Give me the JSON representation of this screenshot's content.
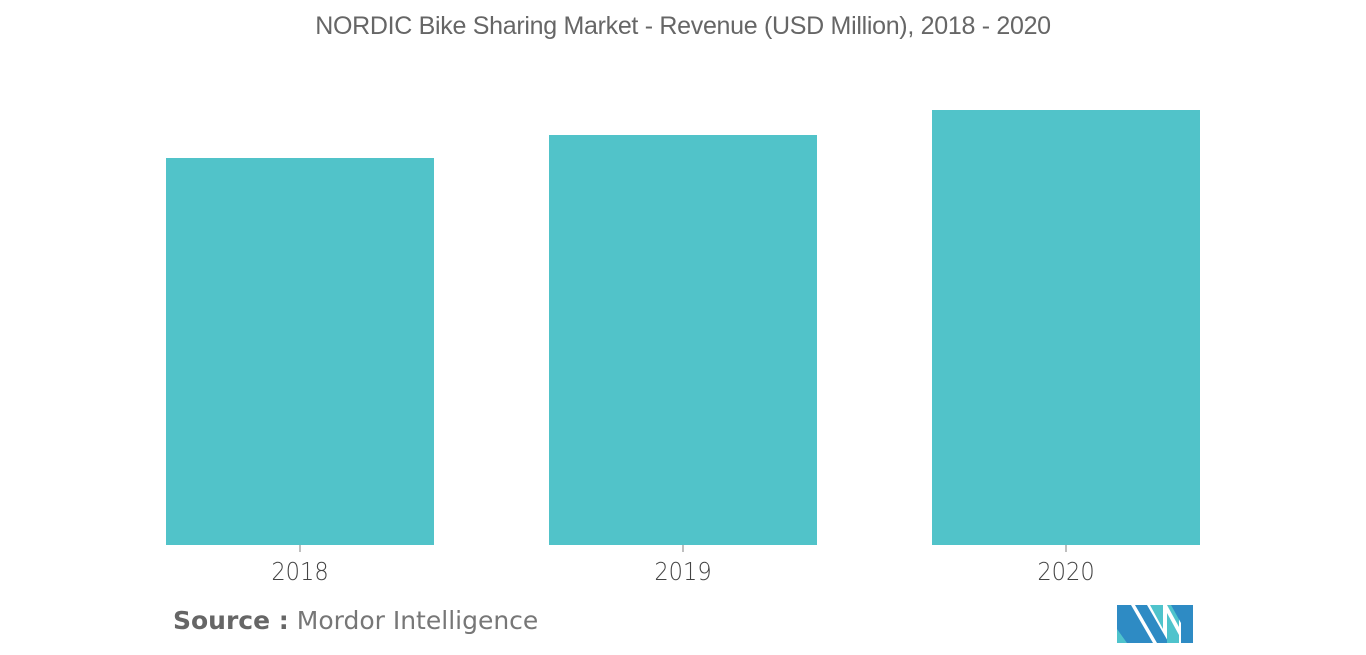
{
  "chart_data": {
    "type": "bar",
    "title": "NORDIC Bike Sharing Market - Revenue (USD Million), 2018 - 2020",
    "categories": [
      "2018",
      "2019",
      "2020"
    ],
    "values": [
      387,
      410,
      435
    ],
    "values_note": "No y-axis or data labels shown; values are relative bar heights (pixel estimates)",
    "xlabel": "",
    "ylabel": "",
    "ylim": [
      0,
      435
    ],
    "grid": false,
    "legend": null,
    "colors": {
      "bar": "#51c3c9"
    }
  },
  "header": {
    "title": "NORDIC Bike Sharing Market - Revenue (USD Million), 2018 - 2020"
  },
  "axis": {
    "x_labels": [
      "2018",
      "2019",
      "2020"
    ]
  },
  "footer": {
    "source_label": "Source :",
    "source_text": "Mordor Intelligence",
    "logo": "mordor-intelligence-logo"
  },
  "colors": {
    "bar": "#51c3c9",
    "title": "#666666",
    "logo_dark": "#2e8bc4",
    "logo_light": "#4fc3cc"
  }
}
